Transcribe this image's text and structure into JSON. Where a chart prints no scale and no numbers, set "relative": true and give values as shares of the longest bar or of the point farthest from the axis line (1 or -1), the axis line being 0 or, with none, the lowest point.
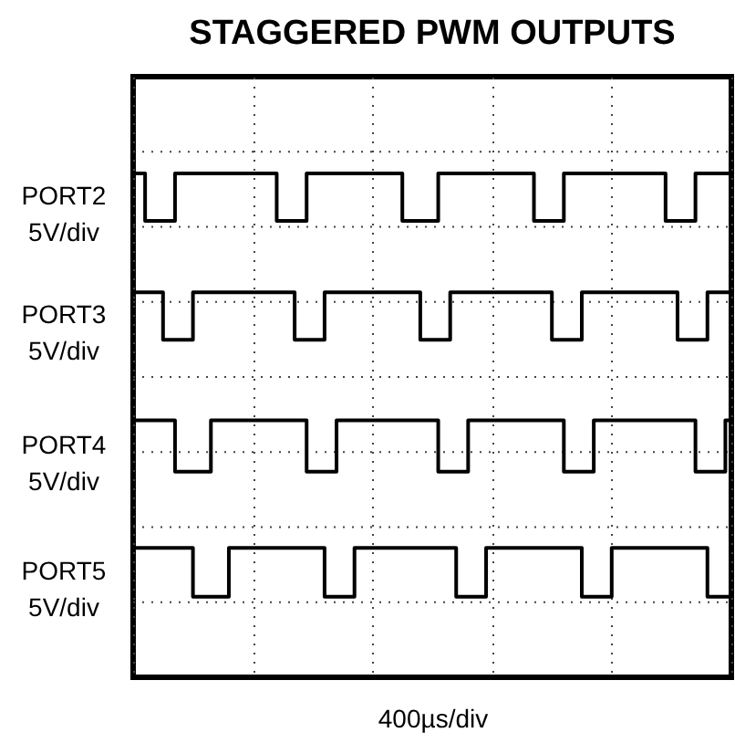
{
  "chart_data": {
    "type": "step",
    "title": "STAGGERED PWM OUTPUTS",
    "xlabel": "400µs/div",
    "relative": true,
    "categories": [
      null,
      null,
      null,
      null,
      null,
      null,
      null,
      null,
      null,
      null,
      null,
      null,
      null,
      null,
      null,
      null,
      null,
      null,
      null,
      null,
      null,
      null,
      null,
      null,
      null,
      null,
      null,
      null,
      null,
      null,
      null,
      null,
      null,
      null,
      null,
      null,
      null,
      null,
      null,
      null,
      null,
      null,
      null,
      null,
      null,
      null,
      null,
      null,
      null,
      null,
      null,
      null,
      null,
      null,
      null,
      null,
      null,
      null,
      null,
      null,
      null,
      null,
      null,
      null,
      null,
      null,
      null,
      null,
      null,
      null,
      null,
      null,
      null,
      null,
      null,
      null,
      null,
      null,
      null,
      null,
      null,
      null,
      null,
      null,
      null,
      null,
      null,
      null,
      null,
      null,
      null,
      null,
      null,
      null,
      null,
      null,
      null,
      null,
      null,
      null,
      null
    ],
    "grid": true,
    "marker": "none",
    "line_style": "solid",
    "series": [
      {
        "name": "PORT2\n5V/div",
        "color": "#000000",
        "values": [
          1,
          1,
          0.906,
          0.906,
          0.906,
          0.906,
          0.906,
          1,
          1,
          1,
          1,
          1,
          1,
          1,
          1,
          1,
          1,
          1,
          1,
          1,
          1,
          1,
          1,
          1,
          0.906,
          0.906,
          0.906,
          0.906,
          0.906,
          1,
          1,
          1,
          1,
          1,
          1,
          1,
          1,
          1,
          1,
          1,
          1,
          1,
          1,
          1,
          1,
          0.906,
          0.906,
          0.906,
          0.906,
          0.906,
          0.906,
          1,
          1,
          1,
          1,
          1,
          1,
          1,
          1,
          1,
          1,
          1,
          1,
          1,
          1,
          1,
          1,
          0.906,
          0.906,
          0.906,
          0.906,
          0.906,
          1,
          1,
          1,
          1,
          1,
          1,
          1,
          1,
          1,
          1,
          1,
          1,
          1,
          1,
          1,
          1,
          1,
          0.906,
          0.906,
          0.906,
          0.906,
          0.906,
          1,
          1,
          1,
          1,
          1,
          1,
          1
        ]
      },
      {
        "name": "PORT3\n5V/div",
        "color": "#000000",
        "values": [
          0.764,
          0.764,
          0.764,
          0.764,
          0.764,
          0.67,
          0.67,
          0.67,
          0.67,
          0.67,
          0.764,
          0.764,
          0.764,
          0.764,
          0.764,
          0.764,
          0.764,
          0.764,
          0.764,
          0.764,
          0.764,
          0.764,
          0.764,
          0.764,
          0.764,
          0.764,
          0.764,
          0.67,
          0.67,
          0.67,
          0.67,
          0.67,
          0.764,
          0.764,
          0.764,
          0.764,
          0.764,
          0.764,
          0.764,
          0.764,
          0.764,
          0.764,
          0.764,
          0.764,
          0.764,
          0.764,
          0.764,
          0.764,
          0.67,
          0.67,
          0.67,
          0.67,
          0.67,
          0.764,
          0.764,
          0.764,
          0.764,
          0.764,
          0.764,
          0.764,
          0.764,
          0.764,
          0.764,
          0.764,
          0.764,
          0.764,
          0.764,
          0.764,
          0.764,
          0.764,
          0.67,
          0.67,
          0.67,
          0.67,
          0.67,
          0.764,
          0.764,
          0.764,
          0.764,
          0.764,
          0.764,
          0.764,
          0.764,
          0.764,
          0.764,
          0.764,
          0.764,
          0.764,
          0.764,
          0.764,
          0.764,
          0.67,
          0.67,
          0.67,
          0.67,
          0.67,
          0.764,
          0.764,
          0.764,
          0.764,
          0.764
        ]
      },
      {
        "name": "PORT4\n5V/div",
        "color": "#000000",
        "values": [
          0.51,
          0.51,
          0.51,
          0.51,
          0.51,
          0.51,
          0.51,
          0.408,
          0.408,
          0.408,
          0.408,
          0.408,
          0.408,
          0.51,
          0.51,
          0.51,
          0.51,
          0.51,
          0.51,
          0.51,
          0.51,
          0.51,
          0.51,
          0.51,
          0.51,
          0.51,
          0.51,
          0.51,
          0.51,
          0.408,
          0.408,
          0.408,
          0.408,
          0.408,
          0.51,
          0.51,
          0.51,
          0.51,
          0.51,
          0.51,
          0.51,
          0.51,
          0.51,
          0.51,
          0.51,
          0.51,
          0.51,
          0.51,
          0.51,
          0.51,
          0.51,
          0.408,
          0.408,
          0.408,
          0.408,
          0.408,
          0.51,
          0.51,
          0.51,
          0.51,
          0.51,
          0.51,
          0.51,
          0.51,
          0.51,
          0.51,
          0.51,
          0.51,
          0.51,
          0.51,
          0.51,
          0.51,
          0.408,
          0.408,
          0.408,
          0.408,
          0.408,
          0.51,
          0.51,
          0.51,
          0.51,
          0.51,
          0.51,
          0.51,
          0.51,
          0.51,
          0.51,
          0.51,
          0.51,
          0.51,
          0.51,
          0.51,
          0.51,
          0.51,
          0.408,
          0.408,
          0.408,
          0.408,
          0.408,
          0.51,
          0.51
        ]
      },
      {
        "name": "PORT5\n5V/div",
        "color": "#000000",
        "values": [
          0.257,
          0.257,
          0.257,
          0.257,
          0.257,
          0.257,
          0.257,
          0.257,
          0.257,
          0.257,
          0.16,
          0.16,
          0.16,
          0.16,
          0.16,
          0.16,
          0.257,
          0.257,
          0.257,
          0.257,
          0.257,
          0.257,
          0.257,
          0.257,
          0.257,
          0.257,
          0.257,
          0.257,
          0.257,
          0.257,
          0.257,
          0.257,
          0.16,
          0.16,
          0.16,
          0.16,
          0.16,
          0.257,
          0.257,
          0.257,
          0.257,
          0.257,
          0.257,
          0.257,
          0.257,
          0.257,
          0.257,
          0.257,
          0.257,
          0.257,
          0.257,
          0.257,
          0.257,
          0.257,
          0.16,
          0.16,
          0.16,
          0.16,
          0.16,
          0.257,
          0.257,
          0.257,
          0.257,
          0.257,
          0.257,
          0.257,
          0.257,
          0.257,
          0.257,
          0.257,
          0.257,
          0.257,
          0.257,
          0.257,
          0.257,
          0.16,
          0.16,
          0.16,
          0.16,
          0.16,
          0.257,
          0.257,
          0.257,
          0.257,
          0.257,
          0.257,
          0.257,
          0.257,
          0.257,
          0.257,
          0.257,
          0.257,
          0.257,
          0.257,
          0.257,
          0.257,
          0.16,
          0.16,
          0.16,
          0.16,
          0.16
        ]
      }
    ]
  }
}
